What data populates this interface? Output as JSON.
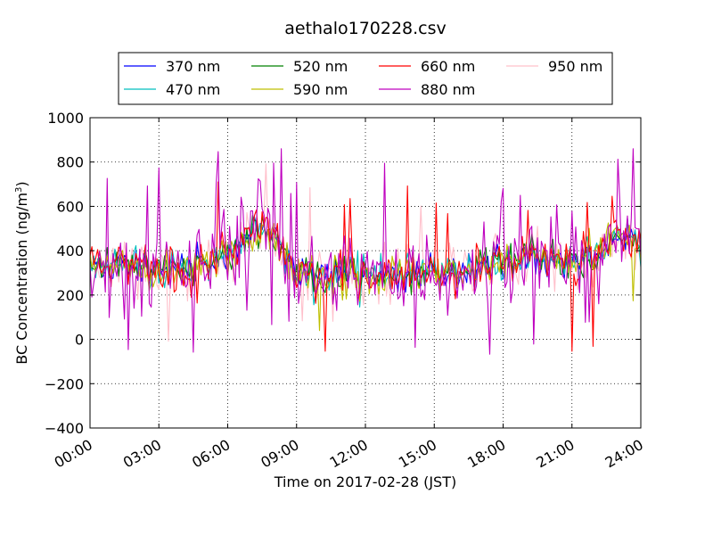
{
  "chart_data": {
    "type": "line",
    "title": "aethalo170228.csv",
    "xlabel": "Time on 2017-02-28 (JST)",
    "ylabel_main": "BC Concentration (ng/m",
    "ylabel_sup": "3",
    "ylabel_end": ")",
    "ylim": [
      -400,
      1000
    ],
    "xlim_hours": [
      0,
      24
    ],
    "yticks": [
      -400,
      -200,
      0,
      200,
      400,
      600,
      800,
      1000
    ],
    "ytick_labels": [
      "−400",
      "−200",
      "0",
      "200",
      "400",
      "600",
      "800",
      "1000"
    ],
    "xticks_hours": [
      0,
      3,
      6,
      9,
      12,
      15,
      18,
      21,
      24
    ],
    "xtick_labels": [
      "00:00",
      "03:00",
      "06:00",
      "09:00",
      "12:00",
      "15:00",
      "18:00",
      "21:00",
      "24:00"
    ],
    "grid": true,
    "legend_position": "top",
    "series": [
      {
        "name": "370 nm",
        "color": "#0000ff",
        "noise": 30,
        "spikes": 0.0
      },
      {
        "name": "470 nm",
        "color": "#00bfbf",
        "noise": 35,
        "spikes": 0.0
      },
      {
        "name": "520 nm",
        "color": "#008000",
        "noise": 35,
        "spikes": 0.0
      },
      {
        "name": "590 nm",
        "color": "#bfbf00",
        "noise": 40,
        "spikes": 0.01
      },
      {
        "name": "660 nm",
        "color": "#ff0000",
        "noise": 45,
        "spikes": 0.03
      },
      {
        "name": "880 nm",
        "color": "#bf00bf",
        "noise": 85,
        "spikes": 0.12
      },
      {
        "name": "950 nm",
        "color": "#ffc0cb",
        "noise": 55,
        "spikes": 0.04
      }
    ],
    "baseline": [
      [
        0,
        300
      ],
      [
        1,
        330
      ],
      [
        2,
        340
      ],
      [
        2.7,
        310
      ],
      [
        3,
        290
      ],
      [
        4,
        310
      ],
      [
        5,
        340
      ],
      [
        6,
        400
      ],
      [
        7,
        470
      ],
      [
        7.7,
        520
      ],
      [
        8.4,
        400
      ],
      [
        9,
        300
      ],
      [
        10,
        280
      ],
      [
        11,
        300
      ],
      [
        12,
        290
      ],
      [
        13,
        290
      ],
      [
        14,
        300
      ],
      [
        15,
        290
      ],
      [
        16,
        300
      ],
      [
        17,
        320
      ],
      [
        18,
        340
      ],
      [
        19,
        380
      ],
      [
        20,
        370
      ],
      [
        21,
        340
      ],
      [
        22,
        380
      ],
      [
        23,
        480
      ],
      [
        24,
        420
      ]
    ]
  }
}
